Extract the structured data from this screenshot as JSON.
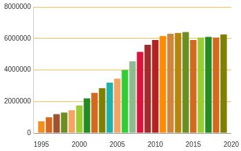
{
  "chart_data": {
    "type": "bar",
    "x": [
      1995,
      1996,
      1997,
      1998,
      1999,
      2000,
      2001,
      2002,
      2003,
      2004,
      2005,
      2006,
      2007,
      2008,
      2009,
      2010,
      2011,
      2012,
      2013,
      2014,
      2015,
      2016,
      2017,
      2018,
      2019
    ],
    "values": [
      750000,
      1000000,
      1200000,
      1300000,
      1450000,
      1750000,
      2200000,
      2550000,
      2850000,
      3200000,
      3450000,
      4000000,
      4550000,
      5150000,
      5600000,
      5900000,
      6150000,
      6300000,
      6350000,
      6400000,
      5900000,
      6050000,
      6100000,
      6050000,
      6250000
    ],
    "colors": [
      "#f28e1c",
      "#d2691e",
      "#a0522d",
      "#6b8e23",
      "#f4a460",
      "#9acd32",
      "#228b22",
      "#d2691e",
      "#808000",
      "#20b2aa",
      "#f4a460",
      "#32cd32",
      "#8fbc8f",
      "#dc143c",
      "#a52a2a",
      "#b22222",
      "#ff8c00",
      "#cd853f",
      "#b8860b",
      "#6b8e23",
      "#d2691e",
      "#9acd32",
      "#228b22",
      "#d2691e",
      "#808000"
    ],
    "xlim": [
      1994,
      2020
    ],
    "xticks": [
      1995,
      2000,
      2005,
      2010,
      2015,
      2020
    ],
    "ylim": [
      0,
      8000000
    ],
    "yticks": [
      0,
      2000000,
      4000000,
      6000000,
      8000000
    ],
    "grid": true
  }
}
